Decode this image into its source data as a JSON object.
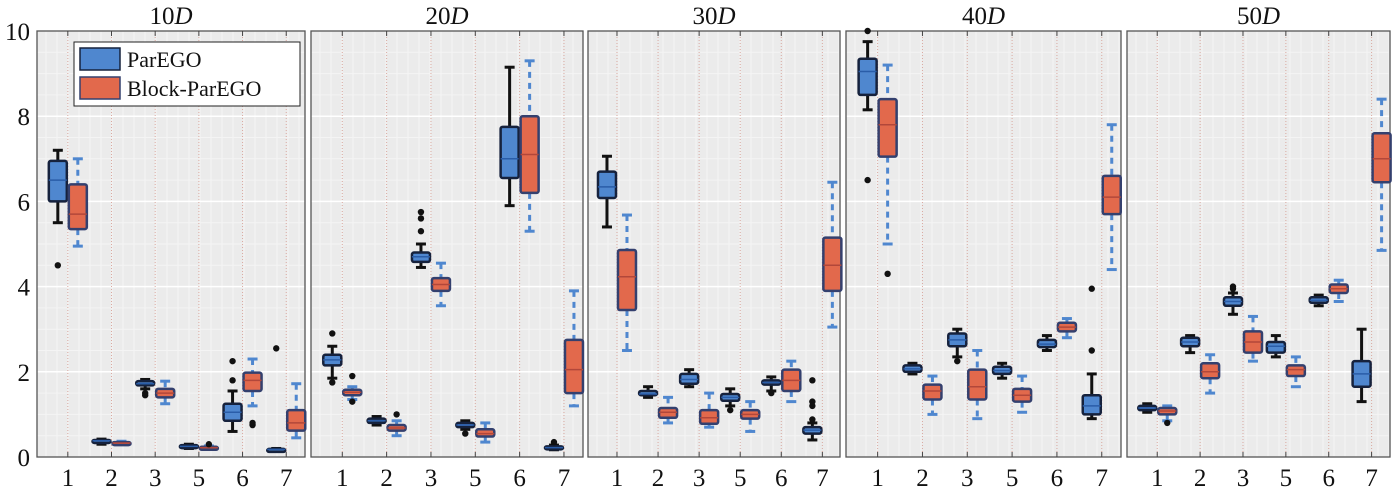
{
  "chart_data": {
    "type": "boxplot",
    "ylim": [
      0,
      10
    ],
    "yticks": [
      "0",
      "2",
      "4",
      "6",
      "8",
      "10"
    ],
    "grid": true,
    "legend": {
      "placement": "top-left of first panel",
      "entries": [
        "ParEGO",
        "Block-ParEGO"
      ]
    },
    "colors": {
      "ParEGO": "#4f87cf",
      "Block-ParEGO": "#e2694c",
      "ParEGO_edge": "#16223d",
      "Block_edge": "#34406e",
      "Block_whisker": "#4f87cf",
      "bg": "#ebebeb"
    },
    "categories": [
      "1",
      "2",
      "3",
      "5",
      "6",
      "7"
    ],
    "stat_order": [
      "whisker_low",
      "q1",
      "median",
      "q3",
      "whisker_high"
    ],
    "panels": [
      {
        "title_num": "10",
        "title_var": "D",
        "series": [
          {
            "name": "ParEGO",
            "boxes": [
              [
                5.5,
                6.0,
                6.5,
                6.95,
                7.2
              ],
              [
                0.3,
                0.35,
                0.38,
                0.4,
                0.42
              ],
              [
                1.6,
                1.68,
                1.72,
                1.78,
                1.82
              ],
              [
                0.2,
                0.22,
                0.25,
                0.28,
                0.3
              ],
              [
                0.6,
                0.85,
                1.05,
                1.25,
                1.55
              ],
              [
                0.15,
                0.17,
                0.18,
                0.19,
                0.2
              ]
            ],
            "outliers": [
              [
                4.5
              ],
              [],
              [
                1.45,
                1.5
              ],
              [],
              [
                1.8,
                2.25
              ],
              [
                2.55
              ]
            ]
          },
          {
            "name": "Block-ParEGO",
            "boxes": [
              [
                4.95,
                5.35,
                5.7,
                6.4,
                7.0
              ],
              [
                0.3,
                0.32,
                0.33,
                0.35,
                0.37
              ],
              [
                1.25,
                1.4,
                1.5,
                1.6,
                1.78
              ],
              [
                0.18,
                0.2,
                0.22,
                0.24,
                0.26
              ],
              [
                1.2,
                1.55,
                1.8,
                1.98,
                2.3
              ],
              [
                0.45,
                0.62,
                0.8,
                1.1,
                1.72
              ]
            ],
            "outliers": [
              [],
              [],
              [],
              [
                0.3
              ],
              [
                0.75,
                0.8
              ],
              []
            ]
          }
        ]
      },
      {
        "title_num": "20",
        "title_var": "D",
        "series": [
          {
            "name": "ParEGO",
            "boxes": [
              [
                1.85,
                2.15,
                2.28,
                2.4,
                2.6
              ],
              [
                0.75,
                0.8,
                0.85,
                0.9,
                0.95
              ],
              [
                4.45,
                4.58,
                4.7,
                4.8,
                5.0
              ],
              [
                0.65,
                0.7,
                0.75,
                0.8,
                0.85
              ],
              [
                5.9,
                6.55,
                7.0,
                7.75,
                9.15
              ],
              [
                0.17,
                0.2,
                0.22,
                0.25,
                0.28
              ]
            ],
            "outliers": [
              [
                2.9,
                1.75
              ],
              [],
              [
                5.3,
                5.6,
                5.75
              ],
              [
                0.55
              ],
              [],
              [
                0.35
              ]
            ]
          },
          {
            "name": "Block-ParEGO",
            "boxes": [
              [
                1.35,
                1.45,
                1.52,
                1.58,
                1.65
              ],
              [
                0.5,
                0.62,
                0.68,
                0.75,
                0.85
              ],
              [
                3.55,
                3.9,
                4.05,
                4.2,
                4.55
              ],
              [
                0.35,
                0.48,
                0.55,
                0.65,
                0.8
              ],
              [
                5.3,
                6.2,
                7.1,
                8.0,
                9.3
              ],
              [
                1.2,
                1.5,
                2.05,
                2.75,
                3.9
              ]
            ],
            "outliers": [
              [
                1.9,
                1.3
              ],
              [
                1.0
              ],
              [],
              [],
              [],
              []
            ]
          }
        ]
      },
      {
        "title_num": "30",
        "title_var": "D",
        "series": [
          {
            "name": "ParEGO",
            "boxes": [
              [
                5.4,
                6.08,
                6.34,
                6.7,
                7.06
              ],
              [
                1.4,
                1.45,
                1.48,
                1.55,
                1.65
              ],
              [
                1.65,
                1.72,
                1.82,
                1.95,
                2.05
              ],
              [
                1.2,
                1.32,
                1.4,
                1.48,
                1.6
              ],
              [
                1.55,
                1.7,
                1.75,
                1.8,
                1.88
              ],
              [
                0.4,
                0.55,
                0.63,
                0.7,
                0.8
              ]
            ],
            "outliers": [
              [],
              [],
              [],
              [
                1.1
              ],
              [
                1.5
              ],
              [
                0.88,
                1.8,
                1.3,
                1.2
              ]
            ]
          },
          {
            "name": "Block-ParEGO",
            "boxes": [
              [
                2.5,
                3.45,
                4.23,
                4.86,
                5.68
              ],
              [
                0.8,
                0.92,
                1.05,
                1.15,
                1.4
              ],
              [
                0.7,
                0.78,
                0.92,
                1.1,
                1.5
              ],
              [
                0.6,
                0.9,
                1.0,
                1.1,
                1.3
              ],
              [
                1.3,
                1.55,
                1.8,
                2.05,
                2.25
              ],
              [
                3.05,
                3.9,
                4.5,
                5.15,
                6.45
              ]
            ],
            "outliers": [
              [],
              [],
              [],
              [],
              [],
              []
            ]
          }
        ]
      },
      {
        "title_num": "40",
        "title_var": "D",
        "series": [
          {
            "name": "ParEGO",
            "boxes": [
              [
                8.15,
                8.5,
                9.05,
                9.35,
                9.75
              ],
              [
                1.95,
                2.0,
                2.07,
                2.15,
                2.2
              ],
              [
                2.35,
                2.6,
                2.75,
                2.9,
                3.0
              ],
              [
                1.85,
                1.95,
                2.03,
                2.12,
                2.2
              ],
              [
                2.5,
                2.58,
                2.65,
                2.75,
                2.85
              ],
              [
                0.9,
                1.0,
                1.2,
                1.45,
                1.95
              ]
            ],
            "outliers": [
              [
                6.5,
                10.0
              ],
              [],
              [
                2.25
              ],
              [],
              [],
              [
                3.95,
                2.5
              ]
            ]
          },
          {
            "name": "Block-ParEGO",
            "boxes": [
              [
                5.0,
                7.05,
                7.8,
                8.4,
                9.2
              ],
              [
                1.0,
                1.35,
                1.55,
                1.7,
                1.9
              ],
              [
                0.9,
                1.35,
                1.65,
                2.05,
                2.5
              ],
              [
                1.05,
                1.3,
                1.45,
                1.6,
                1.9
              ],
              [
                2.8,
                2.95,
                3.05,
                3.15,
                3.25
              ],
              [
                4.4,
                5.7,
                6.1,
                6.6,
                7.8
              ]
            ],
            "outliers": [
              [
                4.3
              ],
              [],
              [],
              [],
              [],
              []
            ]
          }
        ]
      },
      {
        "title_num": "50",
        "title_var": "D",
        "series": [
          {
            "name": "ParEGO",
            "boxes": [
              [
                1.05,
                1.1,
                1.15,
                1.2,
                1.25
              ],
              [
                2.45,
                2.6,
                2.7,
                2.8,
                2.85
              ],
              [
                3.35,
                3.55,
                3.65,
                3.75,
                3.85
              ],
              [
                2.35,
                2.45,
                2.6,
                2.7,
                2.85
              ],
              [
                3.55,
                3.62,
                3.68,
                3.75,
                3.8
              ],
              [
                1.3,
                1.65,
                1.95,
                2.25,
                3.0
              ]
            ],
            "outliers": [
              [],
              [],
              [
                3.95,
                4.0
              ],
              [],
              [],
              []
            ]
          },
          {
            "name": "Block-ParEGO",
            "boxes": [
              [
                0.85,
                1.0,
                1.08,
                1.15,
                1.2
              ],
              [
                1.5,
                1.85,
                2.0,
                2.2,
                2.4
              ],
              [
                2.25,
                2.45,
                2.7,
                2.95,
                3.3
              ],
              [
                1.65,
                1.9,
                2.05,
                2.15,
                2.35
              ],
              [
                3.65,
                3.85,
                3.95,
                4.05,
                4.15
              ],
              [
                4.85,
                6.45,
                7.0,
                7.6,
                8.4
              ]
            ],
            "outliers": [
              [
                0.8
              ],
              [],
              [],
              [],
              [],
              []
            ]
          }
        ]
      }
    ]
  }
}
